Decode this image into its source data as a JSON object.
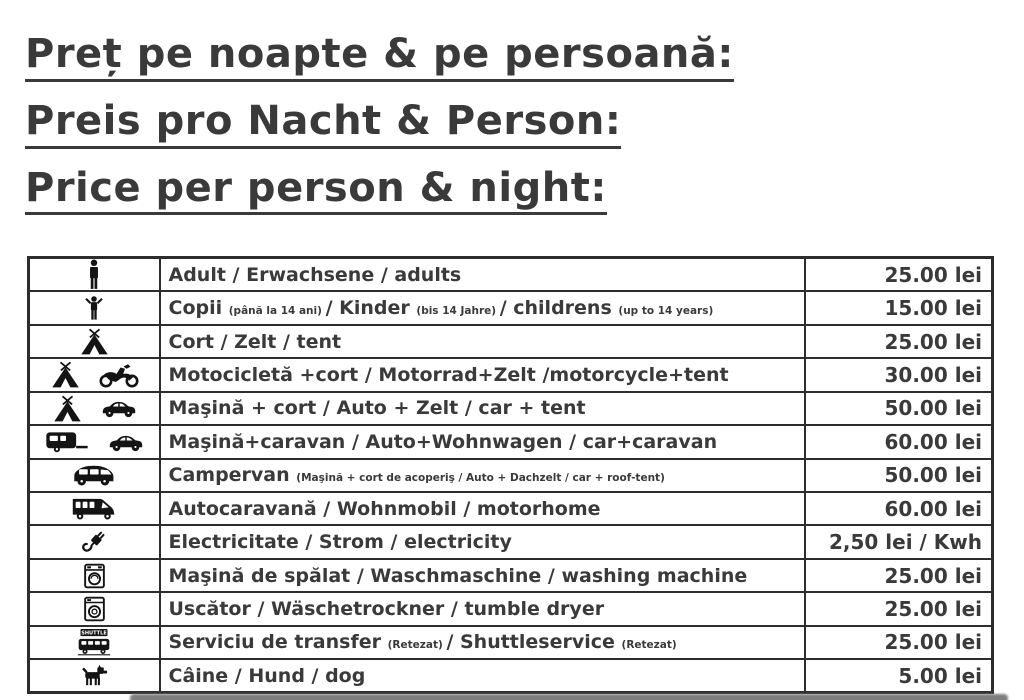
{
  "header": {
    "titles": [
      "Preț pe noapte & pe persoană:",
      "Preis pro Nacht & Person:",
      "Price per person & night:"
    ]
  },
  "colors": {
    "text": "#3a3a3a",
    "table_border": "#2d2d2d",
    "background": "#ffffff",
    "shadow": "#7e7e7e",
    "icon": "#141414"
  },
  "table": {
    "shuttle_sign": "SHUTTLE",
    "rows": [
      {
        "icons": [
          "adult-icon"
        ],
        "segments": [
          {
            "text": "Adult / Erwachsene / adults",
            "small": false
          }
        ],
        "price": "25.00 lei"
      },
      {
        "icons": [
          "child-icon"
        ],
        "segments": [
          {
            "text": "Copii ",
            "small": false
          },
          {
            "text": "(până la 14 ani) ",
            "small": true
          },
          {
            "text": "/ Kinder ",
            "small": false
          },
          {
            "text": "(bis 14 Jahre) ",
            "small": true
          },
          {
            "text": "/ childrens ",
            "small": false
          },
          {
            "text": "(up to 14 years)",
            "small": true
          }
        ],
        "price": "15.00 lei"
      },
      {
        "icons": [
          "tent-icon"
        ],
        "segments": [
          {
            "text": "Cort / Zelt / tent",
            "small": false
          }
        ],
        "price": "25.00 lei"
      },
      {
        "icons": [
          "tent-icon",
          "motorcycle-icon"
        ],
        "segments": [
          {
            "text": "Motocicletă +cort / Motorrad+Zelt /motorcycle+tent",
            "small": false
          }
        ],
        "price": "30.00 lei"
      },
      {
        "icons": [
          "tent-icon",
          "car-icon"
        ],
        "segments": [
          {
            "text": "Maşină + cort / Auto + Zelt / car + tent",
            "small": false
          }
        ],
        "price": "50.00 lei"
      },
      {
        "icons": [
          "caravan-icon",
          "car-icon"
        ],
        "segments": [
          {
            "text": "Maşină+caravan / Auto+Wohnwagen / car+caravan",
            "small": false
          }
        ],
        "price": "60.00 lei"
      },
      {
        "icons": [
          "campervan-icon"
        ],
        "segments": [
          {
            "text": "Campervan ",
            "small": false
          },
          {
            "text": "(Maşină + cort de acoperiş / Auto + Dachzelt / car + roof-tent)",
            "small": true
          }
        ],
        "price": "50.00 lei"
      },
      {
        "icons": [
          "motorhome-icon"
        ],
        "segments": [
          {
            "text": "Autocaravană / Wohnmobil / motorhome",
            "small": false
          }
        ],
        "price": "60.00 lei"
      },
      {
        "icons": [
          "plug-icon"
        ],
        "segments": [
          {
            "text": "Electricitate / Strom / electricity",
            "small": false
          }
        ],
        "price": "2,50 lei / Kwh"
      },
      {
        "icons": [
          "washing-machine-icon"
        ],
        "segments": [
          {
            "text": "Maşină de spălat / Waschmaschine / washing machine",
            "small": false
          }
        ],
        "price": "25.00 lei"
      },
      {
        "icons": [
          "dryer-icon"
        ],
        "segments": [
          {
            "text": "Uscător  / Wäschetrockner / tumble dryer",
            "small": false
          }
        ],
        "price": "25.00 lei"
      },
      {
        "icons": [
          "shuttle-icon"
        ],
        "segments": [
          {
            "text": "Serviciu de transfer ",
            "small": false
          },
          {
            "text": "(Retezat) ",
            "small": true
          },
          {
            "text": "/ Shuttleservice ",
            "small": false
          },
          {
            "text": "(Retezat)",
            "small": true
          }
        ],
        "price": "25.00 lei"
      },
      {
        "icons": [
          "dog-icon"
        ],
        "segments": [
          {
            "text": "Câine / Hund / dog",
            "small": false
          }
        ],
        "price": "5.00 lei"
      }
    ]
  }
}
